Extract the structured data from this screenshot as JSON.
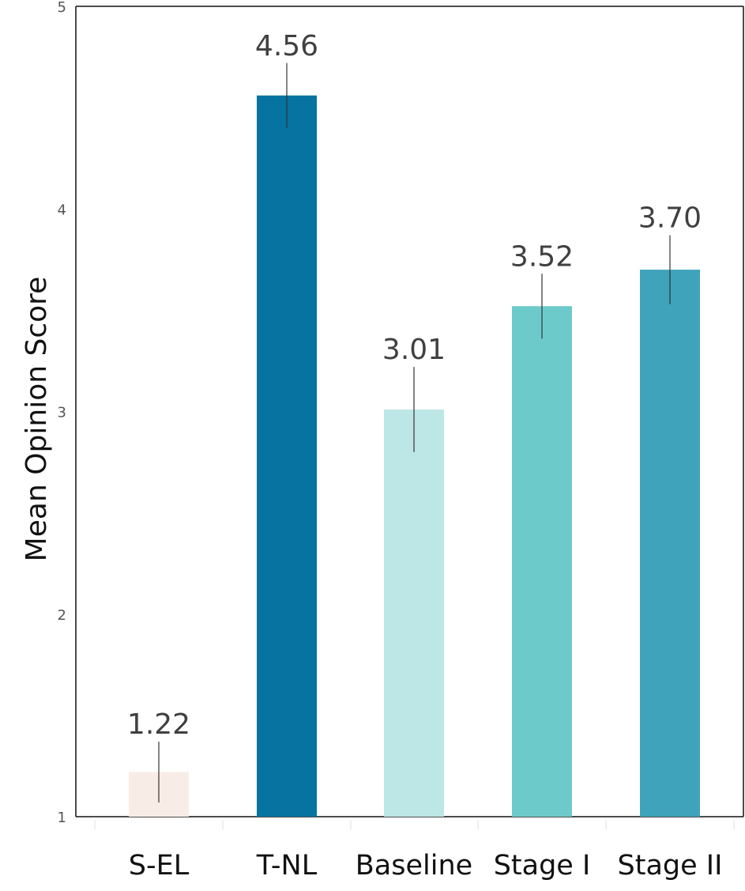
{
  "chart_data": {
    "type": "bar",
    "title": "",
    "xlabel": "",
    "ylabel": "Mean Opinion Score",
    "ylim": [
      1,
      5
    ],
    "yticks": [
      1,
      2,
      3,
      4,
      5
    ],
    "grid": false,
    "legend": "none",
    "categories": [
      "S-EL",
      "T-NL",
      "Baseline",
      "Stage I",
      "Stage II"
    ],
    "values": [
      1.22,
      4.56,
      3.01,
      3.52,
      3.7
    ],
    "value_labels": [
      "1.22",
      "4.56",
      "3.01",
      "3.52",
      "3.70"
    ],
    "error_low": [
      1.07,
      4.4,
      2.8,
      3.36,
      3.53
    ],
    "error_high": [
      1.37,
      4.72,
      3.22,
      3.68,
      3.87
    ],
    "colors": [
      "#f8ede6",
      "#0673a1",
      "#bde7e6",
      "#6ccbca",
      "#3ea3bb"
    ]
  }
}
